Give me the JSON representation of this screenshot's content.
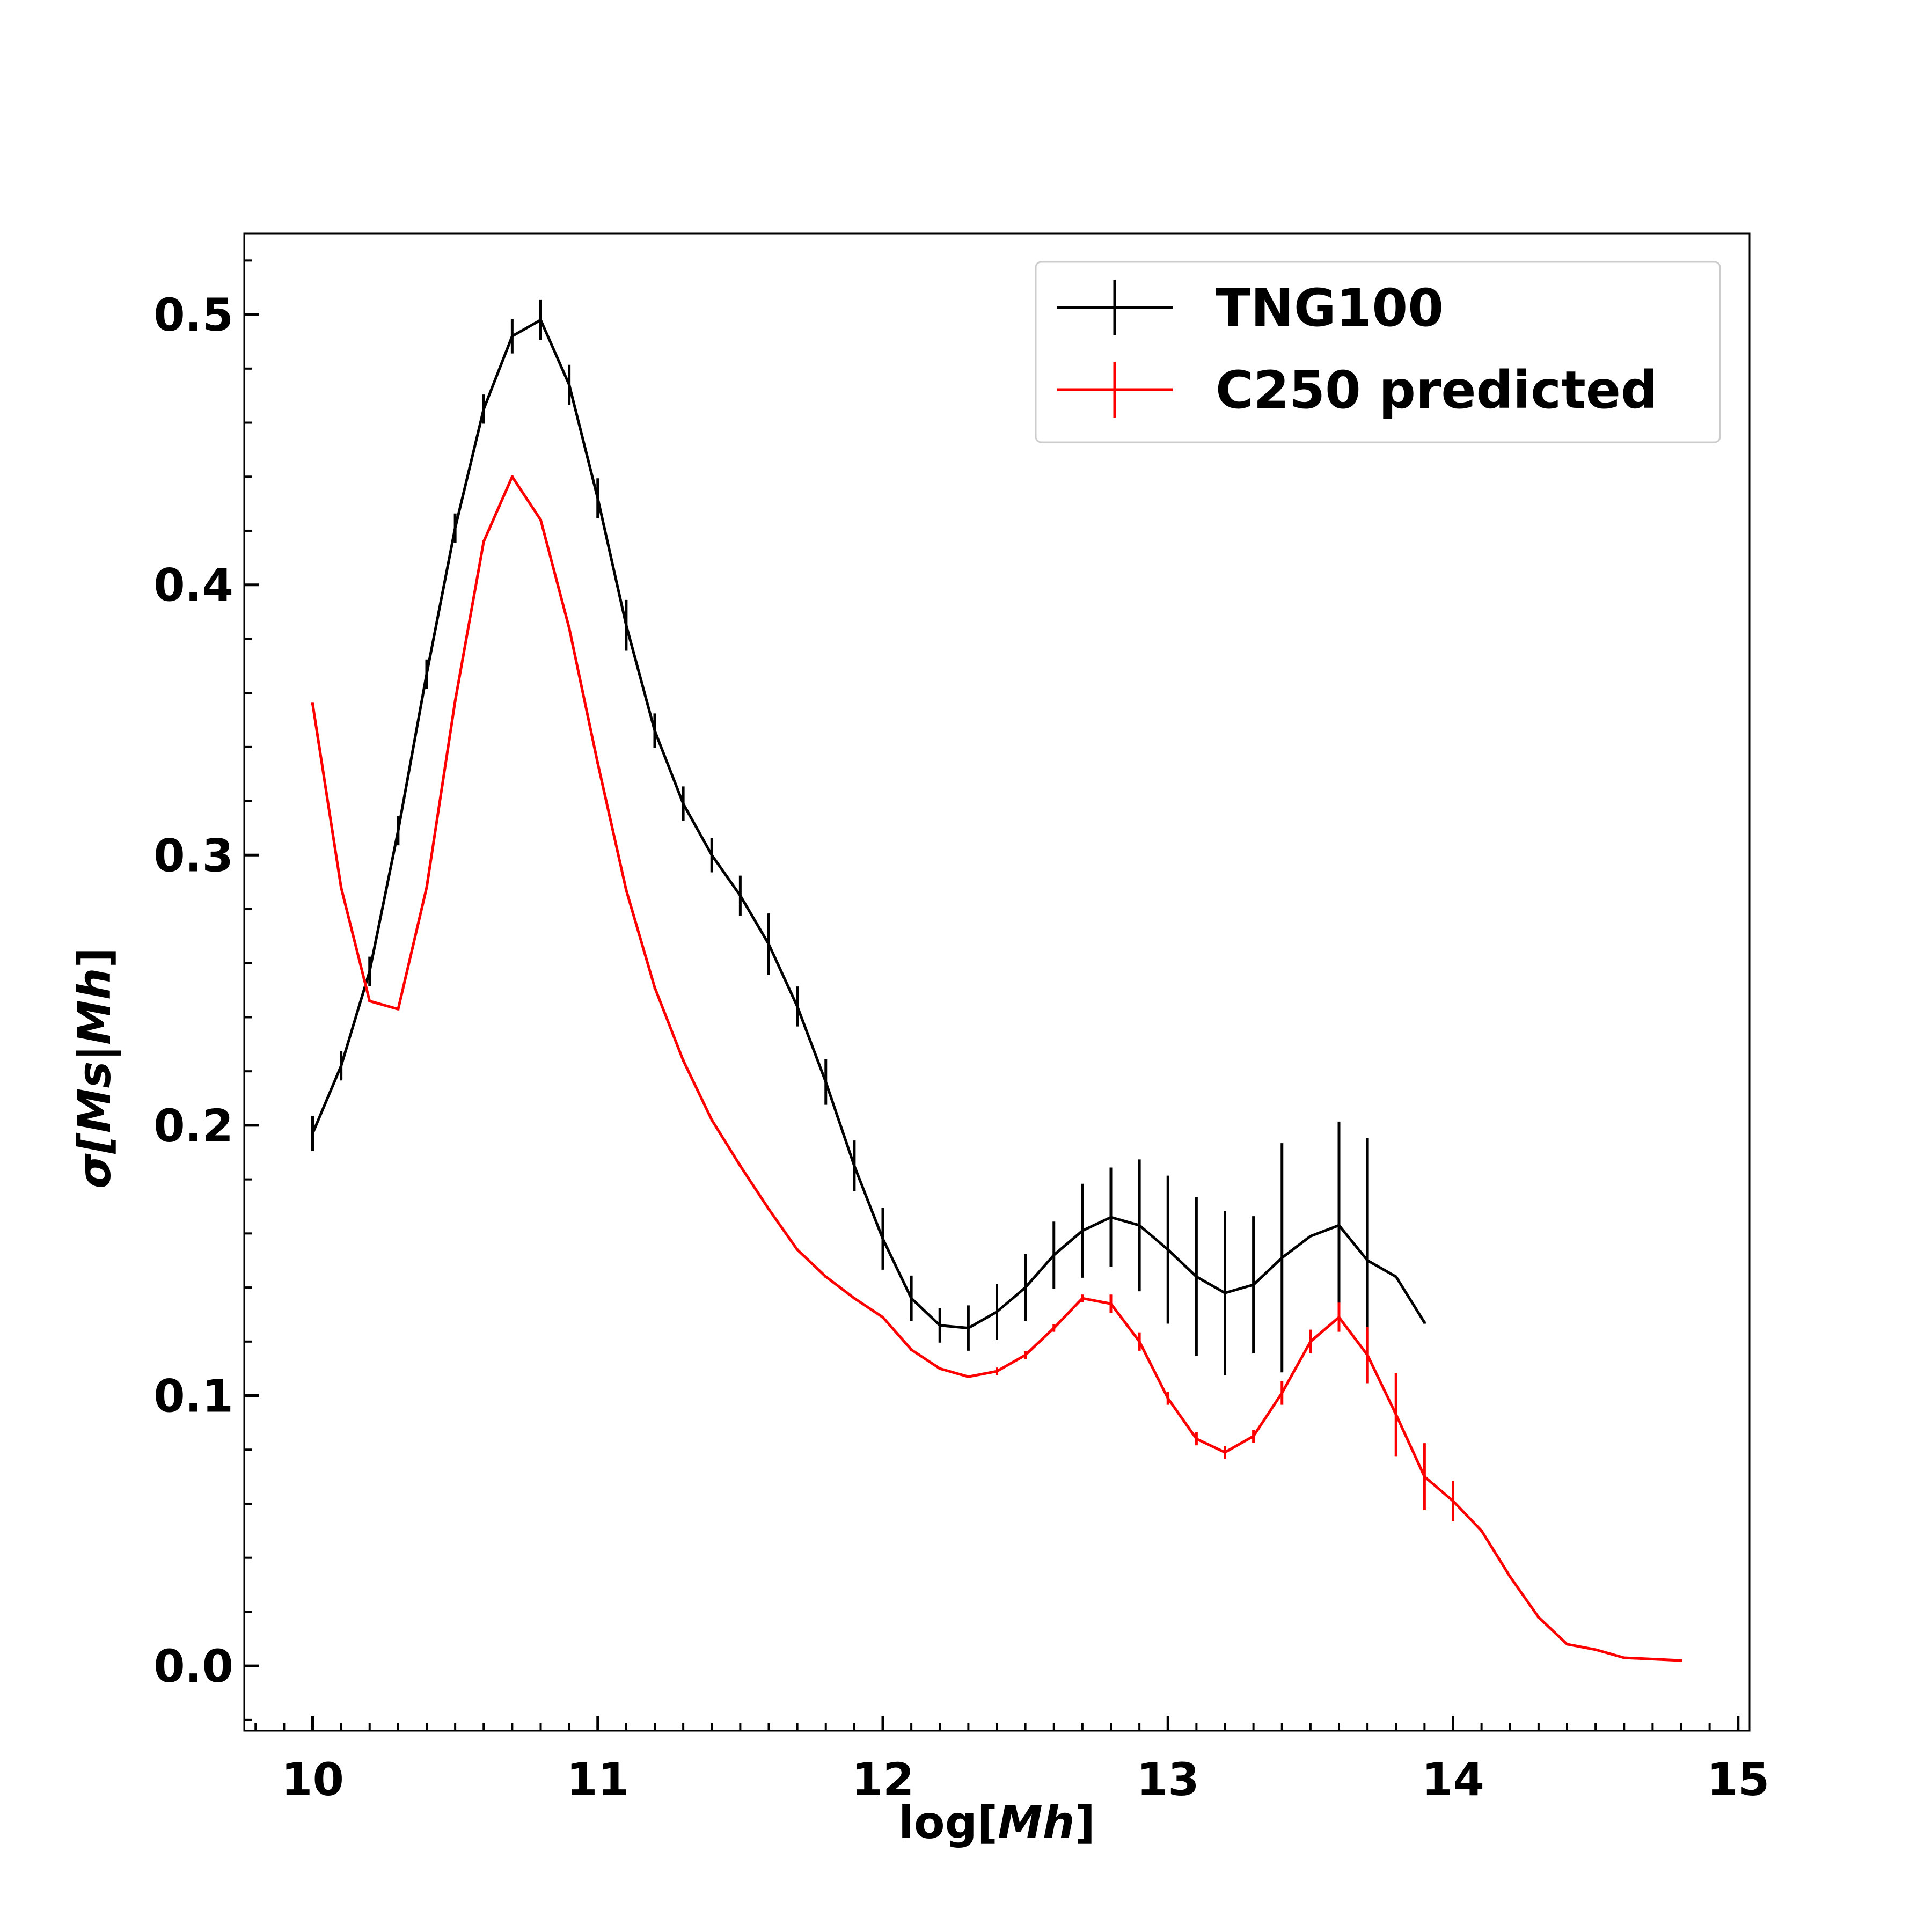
{
  "chart_data": {
    "type": "line",
    "title": "",
    "xlabel_parts": [
      "log[",
      "Mh",
      "]"
    ],
    "ylabel_parts": [
      "σ[",
      "Ms",
      "|",
      "Mh",
      "]"
    ],
    "xlim": [
      9.76,
      15.04
    ],
    "ylim": [
      -0.024,
      0.53
    ],
    "xticks": [
      10,
      11,
      12,
      13,
      14,
      15
    ],
    "xtick_labels": [
      "10",
      "11",
      "12",
      "13",
      "14",
      "15"
    ],
    "yticks": [
      0.0,
      0.1,
      0.2,
      0.3,
      0.4,
      0.5
    ],
    "ytick_labels": [
      "0.0",
      "0.1",
      "0.2",
      "0.3",
      "0.4",
      "0.5"
    ],
    "x_minor_step": 0.1,
    "y_minor_step": 0.02,
    "grid": false,
    "legend_position": "top-right",
    "series": [
      {
        "name": "TNG100",
        "color": "#000000",
        "x": [
          10.0,
          10.1,
          10.2,
          10.3,
          10.4,
          10.5,
          10.6,
          10.7,
          10.8,
          10.9,
          11.0,
          11.1,
          11.2,
          11.3,
          11.4,
          11.5,
          11.6,
          11.7,
          11.8,
          11.9,
          12.0,
          12.1,
          12.2,
          12.3,
          12.4,
          12.5,
          12.6,
          12.7,
          12.8,
          12.9,
          13.0,
          13.1,
          13.2,
          13.3,
          13.4,
          13.5,
          13.6,
          13.7,
          13.8,
          13.9
        ],
        "y": [
          0.197,
          0.222,
          0.257,
          0.309,
          0.367,
          0.421,
          0.465,
          0.492,
          0.498,
          0.474,
          0.432,
          0.385,
          0.346,
          0.319,
          0.3,
          0.285,
          0.267,
          0.244,
          0.216,
          0.185,
          0.158,
          0.136,
          0.126,
          0.125,
          0.131,
          0.14,
          0.152,
          0.161,
          0.166,
          0.163,
          0.154,
          0.144,
          0.138,
          0.141,
          0.151,
          0.159,
          0.163,
          0.15,
          0.144,
          0.127
        ],
        "yerr": [
          0.006,
          0.005,
          0.005,
          0.005,
          0.005,
          0.005,
          0.005,
          0.006,
          0.007,
          0.007,
          0.007,
          0.009,
          0.006,
          0.006,
          0.006,
          0.007,
          0.011,
          0.007,
          0.008,
          0.009,
          0.011,
          0.008,
          0.006,
          0.008,
          0.01,
          0.012,
          0.012,
          0.017,
          0.018,
          0.024,
          0.027,
          0.029,
          0.03,
          0.025,
          0.042,
          0.0,
          0.038,
          0.045,
          0.0,
          0.0
        ]
      },
      {
        "name": "C250 predicted",
        "color": "#ff0000",
        "x": [
          10.0,
          10.1,
          10.2,
          10.3,
          10.4,
          10.5,
          10.6,
          10.7,
          10.8,
          10.9,
          11.0,
          11.1,
          11.2,
          11.3,
          11.4,
          11.5,
          11.6,
          11.7,
          11.8,
          11.9,
          12.0,
          12.1,
          12.2,
          12.3,
          12.4,
          12.5,
          12.6,
          12.7,
          12.8,
          12.9,
          13.0,
          13.1,
          13.2,
          13.3,
          13.4,
          13.5,
          13.6,
          13.7,
          13.8,
          13.9,
          14.0,
          14.1,
          14.2,
          14.3,
          14.4,
          14.5,
          14.6,
          14.7,
          14.8
        ],
        "y": [
          0.356,
          0.288,
          0.246,
          0.243,
          0.288,
          0.357,
          0.416,
          0.44,
          0.424,
          0.384,
          0.334,
          0.287,
          0.251,
          0.224,
          0.202,
          0.185,
          0.169,
          0.154,
          0.144,
          0.136,
          0.129,
          0.117,
          0.11,
          0.107,
          0.109,
          0.115,
          0.125,
          0.136,
          0.134,
          0.12,
          0.099,
          0.084,
          0.079,
          0.085,
          0.101,
          0.12,
          0.129,
          0.115,
          0.093,
          0.07,
          0.061,
          0.05,
          0.033,
          0.018,
          0.008,
          0.006,
          0.003,
          0.0025,
          0.002
        ],
        "yerr": [
          0.0,
          0.0,
          0.0,
          0.0,
          0.0,
          0.0,
          0.0,
          0.0,
          0.0,
          0.0,
          0.0,
          0.0,
          0.0,
          0.0,
          0.0,
          0.0,
          0.0,
          0.0,
          0.0,
          0.0,
          0.0,
          0.0,
          0.0,
          0.0,
          0.001,
          0.001,
          0.001,
          0.001,
          0.003,
          0.003,
          0.002,
          0.002,
          0.002,
          0.002,
          0.004,
          0.004,
          0.005,
          0.01,
          0.015,
          0.012,
          0.007,
          0.0,
          0.0,
          0.0,
          0.0,
          0.0,
          0.0,
          0.0,
          0.0
        ]
      }
    ]
  }
}
